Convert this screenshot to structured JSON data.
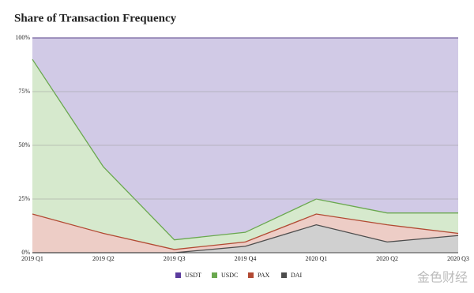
{
  "chart_data": {
    "type": "stacked_area_100",
    "title": "Share of Transaction Frequency",
    "categories": [
      "2019 Q1",
      "2019 Q2",
      "2019 Q3",
      "2019 Q4",
      "2020 Q1",
      "2020 Q2",
      "2020 Q3"
    ],
    "series": [
      {
        "name": "DAI",
        "color": "#4d4d4d",
        "fill": "#d0d0d0",
        "values": [
          0,
          0,
          0,
          3,
          13,
          5,
          8
        ]
      },
      {
        "name": "PAX",
        "color": "#b24a33",
        "fill": "#edcdc6",
        "values": [
          18,
          9,
          1.5,
          2,
          5,
          8,
          1
        ]
      },
      {
        "name": "USDC",
        "color": "#6aa84f",
        "fill": "#d6e9cd",
        "values": [
          72,
          31,
          4.5,
          4.5,
          7,
          5.5,
          9.5
        ]
      },
      {
        "name": "USDT",
        "color": "#5b3c9e",
        "fill": "#d1cae6",
        "values": [
          10,
          60,
          94,
          90.5,
          75,
          81.5,
          81.5
        ]
      }
    ],
    "legend_order": [
      "USDT",
      "USDC",
      "PAX",
      "DAI"
    ],
    "ylim": [
      0,
      100
    ],
    "yticks": [
      {
        "value": 0,
        "label": "0%"
      },
      {
        "value": 25,
        "label": "25%"
      },
      {
        "value": 50,
        "label": "50%"
      },
      {
        "value": 75,
        "label": "75%"
      },
      {
        "value": 100,
        "label": "100%"
      }
    ],
    "grid": true,
    "watermark": "金色财经"
  }
}
